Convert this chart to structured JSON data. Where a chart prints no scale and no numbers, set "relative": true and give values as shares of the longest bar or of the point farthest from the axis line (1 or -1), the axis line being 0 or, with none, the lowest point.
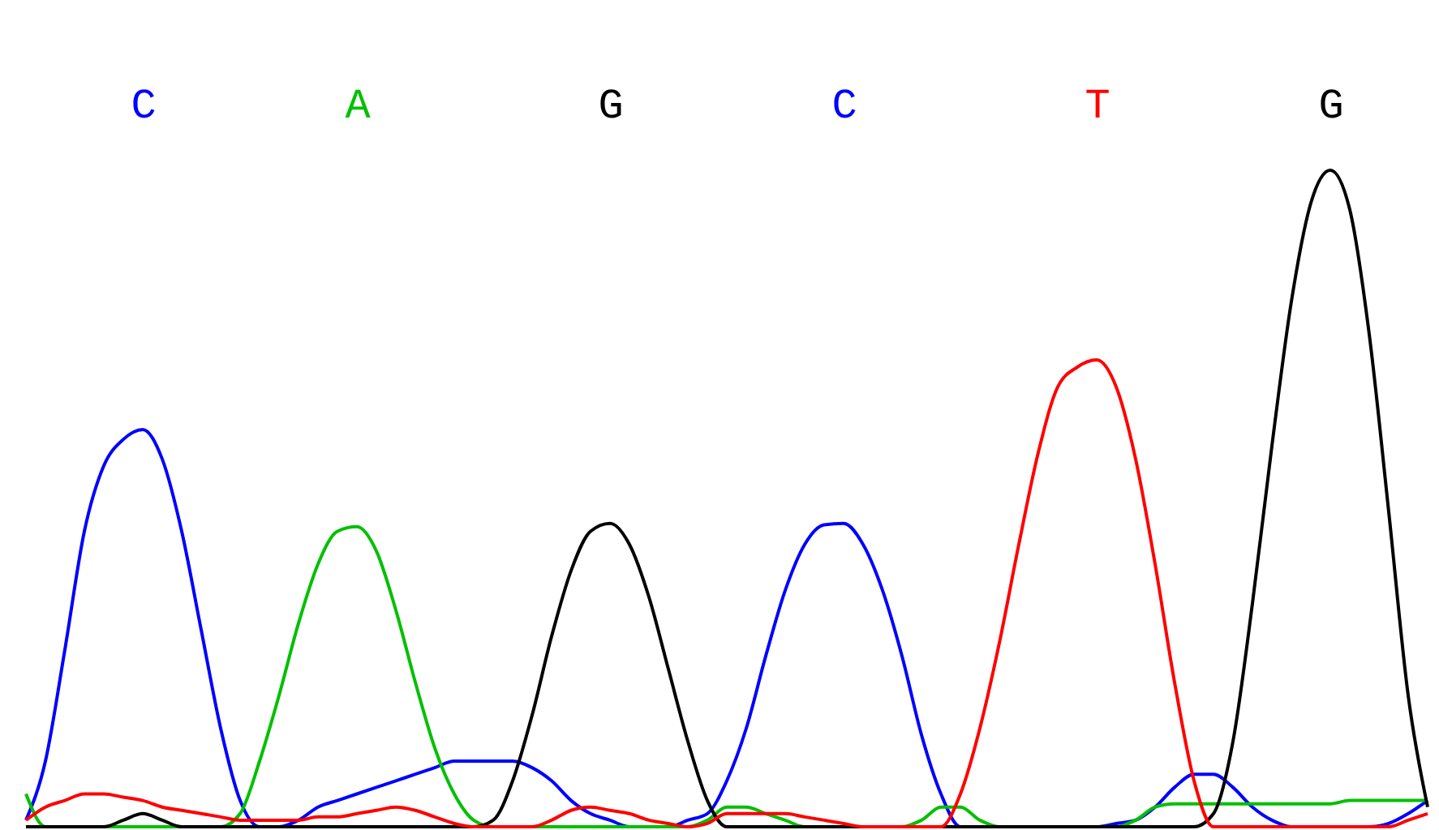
{
  "chart_data": {
    "type": "line",
    "relative": true,
    "legend": false,
    "line_style": "solid",
    "marker": "none",
    "categories": [
      null,
      null,
      null,
      null,
      null,
      null,
      "C",
      null,
      null,
      null,
      null,
      null,
      null,
      null,
      null,
      null,
      null,
      "A",
      null,
      null,
      null,
      null,
      null,
      null,
      null,
      null,
      null,
      null,
      null,
      null,
      "G",
      null,
      null,
      null,
      null,
      null,
      null,
      null,
      null,
      null,
      null,
      null,
      "C",
      null,
      null,
      null,
      null,
      null,
      null,
      null,
      null,
      null,
      null,
      null,
      null,
      "T",
      null,
      null,
      null,
      null,
      null,
      null,
      null,
      null,
      null,
      null,
      null,
      "G",
      null,
      null,
      null,
      null,
      null
    ],
    "series": [
      {
        "color": "#0000ff",
        "values": [
          0.01,
          0.1,
          0.27,
          0.45,
          0.55,
          0.59,
          0.605,
          0.56,
          0.45,
          0.3,
          0.15,
          0.04,
          0.0,
          0.0,
          0.01,
          0.03,
          0.04,
          0.05,
          0.06,
          0.07,
          0.08,
          0.09,
          0.1,
          0.1,
          0.1,
          0.1,
          0.09,
          0.07,
          0.04,
          0.02,
          0.01,
          0.0,
          0.0,
          0.0,
          0.01,
          0.02,
          0.07,
          0.15,
          0.26,
          0.36,
          0.43,
          0.46,
          0.462,
          0.43,
          0.36,
          0.26,
          0.14,
          0.05,
          0.0,
          0.0,
          0.0,
          0.0,
          0.0,
          0.0,
          0.0,
          0.0,
          0.005,
          0.01,
          0.03,
          0.06,
          0.08,
          0.08,
          0.06,
          0.03,
          0.01,
          0.0,
          0.0,
          0.0,
          0.0,
          0.0,
          0.005,
          0.02,
          0.04
        ]
      },
      {
        "color": "#00c000",
        "values": [
          0.05,
          0.0,
          0.0,
          0.0,
          0.0,
          0.0,
          0.0,
          0.0,
          0.0,
          0.0,
          0.0,
          0.02,
          0.1,
          0.2,
          0.31,
          0.4,
          0.45,
          0.457,
          0.42,
          0.33,
          0.22,
          0.12,
          0.05,
          0.01,
          0.0,
          0.0,
          0.0,
          0.0,
          0.0,
          0.0,
          0.0,
          0.0,
          0.0,
          0.0,
          0.0,
          0.01,
          0.03,
          0.03,
          0.02,
          0.01,
          0.0,
          0.0,
          0.0,
          0.0,
          0.0,
          0.0,
          0.01,
          0.03,
          0.03,
          0.01,
          0.0,
          0.0,
          0.0,
          0.0,
          0.0,
          0.0,
          0.0,
          0.01,
          0.03,
          0.035,
          0.035,
          0.035,
          0.035,
          0.035,
          0.035,
          0.035,
          0.035,
          0.035,
          0.04,
          0.04,
          0.04,
          0.04,
          0.04
        ]
      },
      {
        "color": "#000000",
        "values": [
          0.0,
          0.0,
          0.0,
          0.0,
          0.0,
          0.01,
          0.02,
          0.01,
          0.0,
          0.0,
          0.0,
          0.0,
          0.0,
          0.0,
          0.0,
          0.0,
          0.0,
          0.0,
          0.0,
          0.0,
          0.0,
          0.0,
          0.0,
          0.0,
          0.01,
          0.07,
          0.17,
          0.29,
          0.39,
          0.45,
          0.462,
          0.43,
          0.35,
          0.24,
          0.13,
          0.04,
          0.0,
          0.0,
          0.0,
          0.0,
          0.0,
          0.0,
          0.0,
          0.0,
          0.0,
          0.0,
          0.0,
          0.0,
          0.0,
          0.0,
          0.0,
          0.0,
          0.0,
          0.0,
          0.0,
          0.0,
          0.0,
          0.0,
          0.0,
          0.0,
          0.0,
          0.02,
          0.13,
          0.34,
          0.58,
          0.8,
          0.95,
          1.0,
          0.94,
          0.75,
          0.48,
          0.2,
          0.03
        ]
      },
      {
        "color": "#ff0000",
        "values": [
          0.01,
          0.03,
          0.04,
          0.05,
          0.05,
          0.045,
          0.04,
          0.03,
          0.025,
          0.02,
          0.015,
          0.01,
          0.01,
          0.01,
          0.01,
          0.015,
          0.015,
          0.02,
          0.025,
          0.03,
          0.025,
          0.015,
          0.005,
          0.0,
          0.0,
          0.0,
          0.0,
          0.01,
          0.025,
          0.03,
          0.025,
          0.02,
          0.01,
          0.005,
          0.0,
          0.005,
          0.02,
          0.02,
          0.02,
          0.02,
          0.015,
          0.01,
          0.005,
          0.0,
          0.0,
          0.0,
          0.0,
          0.0,
          0.05,
          0.15,
          0.28,
          0.43,
          0.57,
          0.67,
          0.7,
          0.711,
          0.67,
          0.56,
          0.4,
          0.22,
          0.07,
          0.0,
          0.0,
          0.0,
          0.0,
          0.0,
          0.0,
          0.0,
          0.0,
          0.0,
          0.0,
          0.01,
          0.02
        ]
      }
    ]
  }
}
